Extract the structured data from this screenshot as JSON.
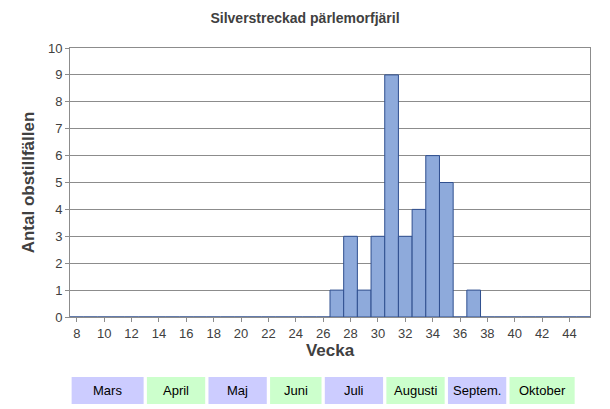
{
  "chart_data": {
    "type": "bar",
    "title": "Silverstreckad pärlemorfjäril",
    "x_label": "Vecka",
    "y_label": "Antal obstillfällen",
    "x": [
      8,
      9,
      10,
      11,
      12,
      13,
      14,
      15,
      16,
      17,
      18,
      19,
      20,
      21,
      22,
      23,
      24,
      25,
      26,
      27,
      28,
      29,
      30,
      31,
      32,
      33,
      34,
      35,
      36,
      37,
      38,
      39,
      40,
      41,
      42,
      43,
      44,
      45
    ],
    "values": [
      0,
      0,
      0,
      0,
      0,
      0,
      0,
      0,
      0,
      0,
      0,
      0,
      0,
      0,
      0,
      0,
      0,
      0,
      0,
      1,
      3,
      1,
      3,
      9,
      3,
      4,
      6,
      5,
      0,
      1,
      0,
      0,
      0,
      0,
      0,
      0,
      0,
      0
    ],
    "color": "#8eaadb",
    "xlim": [
      7.5,
      45.5
    ],
    "xticks": [
      8,
      10,
      12,
      14,
      16,
      18,
      20,
      22,
      24,
      26,
      28,
      30,
      32,
      34,
      36,
      38,
      40,
      42,
      44
    ],
    "ylim": [
      0,
      10
    ],
    "yticks": [
      0,
      1,
      2,
      3,
      4,
      5,
      6,
      7,
      8,
      9,
      10
    ],
    "grid": true,
    "month_bands": [
      {
        "text": "Mars",
        "start": 7.5,
        "end": 13
      },
      {
        "text": "April",
        "start": 13,
        "end": 17.5
      },
      {
        "text": "Maj",
        "start": 17.5,
        "end": 22
      },
      {
        "text": "Juni",
        "start": 22,
        "end": 26
      },
      {
        "text": "Juli",
        "start": 26,
        "end": 30.5
      },
      {
        "text": "Augusti",
        "start": 30.5,
        "end": 35
      },
      {
        "text": "Septem.",
        "start": 35,
        "end": 39.5
      },
      {
        "text": "Oktober",
        "start": 39.5,
        "end": 44.5
      }
    ]
  }
}
